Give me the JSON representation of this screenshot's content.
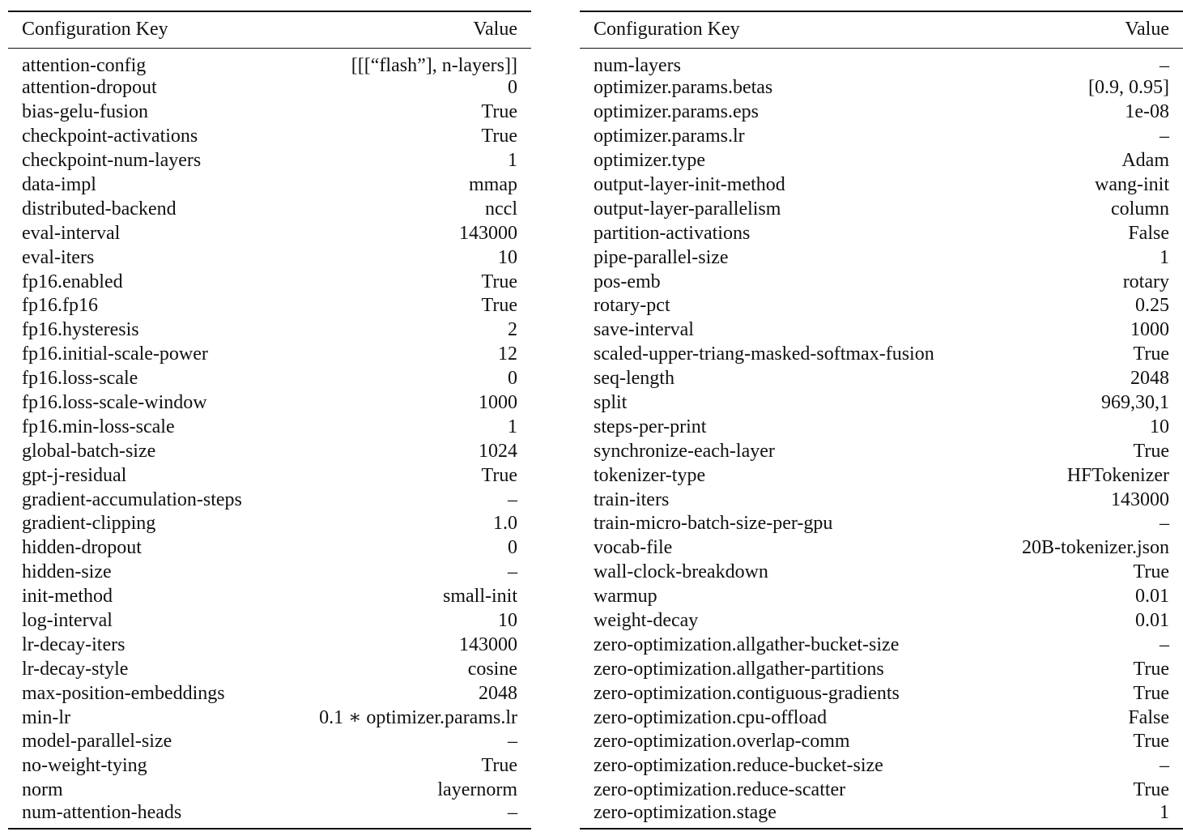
{
  "header": {
    "key": "Configuration Key",
    "value": "Value"
  },
  "left": [
    [
      "attention-config",
      "[[[“flash”], n-layers]]"
    ],
    [
      "attention-dropout",
      "0"
    ],
    [
      "bias-gelu-fusion",
      "True"
    ],
    [
      "checkpoint-activations",
      "True"
    ],
    [
      "checkpoint-num-layers",
      "1"
    ],
    [
      "data-impl",
      "mmap"
    ],
    [
      "distributed-backend",
      "nccl"
    ],
    [
      "eval-interval",
      "143000"
    ],
    [
      "eval-iters",
      "10"
    ],
    [
      "fp16.enabled",
      "True"
    ],
    [
      "fp16.fp16",
      "True"
    ],
    [
      "fp16.hysteresis",
      "2"
    ],
    [
      "fp16.initial-scale-power",
      "12"
    ],
    [
      "fp16.loss-scale",
      "0"
    ],
    [
      "fp16.loss-scale-window",
      "1000"
    ],
    [
      "fp16.min-loss-scale",
      "1"
    ],
    [
      "global-batch-size",
      "1024"
    ],
    [
      "gpt-j-residual",
      "True"
    ],
    [
      "gradient-accumulation-steps",
      "–"
    ],
    [
      "gradient-clipping",
      "1.0"
    ],
    [
      "hidden-dropout",
      "0"
    ],
    [
      "hidden-size",
      "–"
    ],
    [
      "init-method",
      "small-init"
    ],
    [
      "log-interval",
      "10"
    ],
    [
      "lr-decay-iters",
      "143000"
    ],
    [
      "lr-decay-style",
      "cosine"
    ],
    [
      "max-position-embeddings",
      "2048"
    ],
    [
      "min-lr",
      "0.1 ∗ optimizer.params.lr"
    ],
    [
      "model-parallel-size",
      "–"
    ],
    [
      "no-weight-tying",
      "True"
    ],
    [
      "norm",
      "layernorm"
    ],
    [
      "num-attention-heads",
      "–"
    ]
  ],
  "right": [
    [
      "num-layers",
      "–"
    ],
    [
      "optimizer.params.betas",
      "[0.9, 0.95]"
    ],
    [
      "optimizer.params.eps",
      "1e-08"
    ],
    [
      "optimizer.params.lr",
      "–"
    ],
    [
      "optimizer.type",
      "Adam"
    ],
    [
      "output-layer-init-method",
      "wang-init"
    ],
    [
      "output-layer-parallelism",
      "column"
    ],
    [
      "partition-activations",
      "False"
    ],
    [
      "pipe-parallel-size",
      "1"
    ],
    [
      "pos-emb",
      "rotary"
    ],
    [
      "rotary-pct",
      "0.25"
    ],
    [
      "save-interval",
      "1000"
    ],
    [
      "scaled-upper-triang-masked-softmax-fusion",
      "True"
    ],
    [
      "seq-length",
      "2048"
    ],
    [
      "split",
      "969,30,1"
    ],
    [
      "steps-per-print",
      "10"
    ],
    [
      "synchronize-each-layer",
      "True"
    ],
    [
      "tokenizer-type",
      "HFTokenizer"
    ],
    [
      "train-iters",
      "143000"
    ],
    [
      "train-micro-batch-size-per-gpu",
      "–"
    ],
    [
      "vocab-file",
      "20B-tokenizer.json"
    ],
    [
      "wall-clock-breakdown",
      "True"
    ],
    [
      "warmup",
      "0.01"
    ],
    [
      "weight-decay",
      "0.01"
    ],
    [
      "zero-optimization.allgather-bucket-size",
      "–"
    ],
    [
      "zero-optimization.allgather-partitions",
      "True"
    ],
    [
      "zero-optimization.contiguous-gradients",
      "True"
    ],
    [
      "zero-optimization.cpu-offload",
      "False"
    ],
    [
      "zero-optimization.overlap-comm",
      "True"
    ],
    [
      "zero-optimization.reduce-bucket-size",
      "–"
    ],
    [
      "zero-optimization.reduce-scatter",
      "True"
    ],
    [
      "zero-optimization.stage",
      "1"
    ]
  ]
}
